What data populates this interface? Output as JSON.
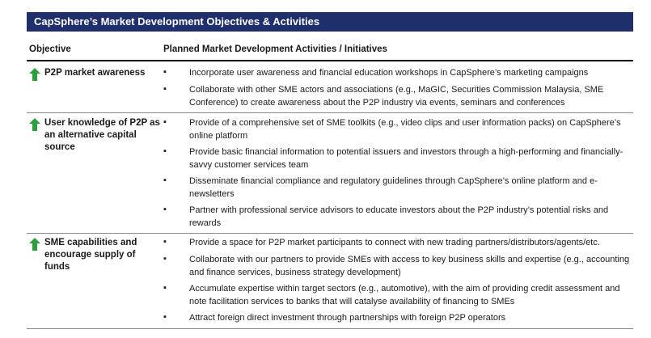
{
  "title": "CapSphere’s Market Development Objectives & Activities",
  "headers": {
    "objective": "Objective",
    "activities": "Planned Market Development Activities / Initiatives"
  },
  "colors": {
    "title_bg": "#1f2f6b",
    "arrow": "#2e9e3e"
  },
  "icons": {
    "objective_marker": "green-up-arrow-icon",
    "bullet": "square-bullet"
  },
  "rows": [
    {
      "objective": "P2P market awareness",
      "activities": [
        "Incorporate user awareness and financial education workshops in CapSphere’s marketing campaigns",
        "Collaborate with other SME actors and associations (e.g., MaGIC, Securities Commission Malaysia, SME Conference) to create awareness about the P2P industry via events, seminars and conferences"
      ]
    },
    {
      "objective": "User knowledge of P2P as an alternative capital source",
      "activities": [
        "Provide of a comprehensive set of SME toolkits (e.g., video clips and user information packs) on CapSphere’s online platform",
        "Provide basic financial information to potential issuers and investors through a high-performing and financially-savvy customer services team",
        "Disseminate financial compliance and regulatory guidelines through CapSphere’s online platform and e-newsletters",
        "Partner with professional service advisors to educate investors about the P2P industry’s potential risks and rewards"
      ]
    },
    {
      "objective": "SME capabilities and encourage supply of funds",
      "activities": [
        "Provide a space for P2P market participants to connect with new trading partners/distributors/agents/etc.",
        "Collaborate with our partners to provide SMEs with access to key business skills and expertise (e.g., accounting and finance services, business strategy development)",
        "Accumulate expertise within target sectors (e.g., automotive), with the aim of providing credit assessment and note facilitation services to banks that will catalyse availability of financing to SMEs",
        "Attract foreign direct investment through partnerships with foreign P2P operators"
      ]
    }
  ]
}
